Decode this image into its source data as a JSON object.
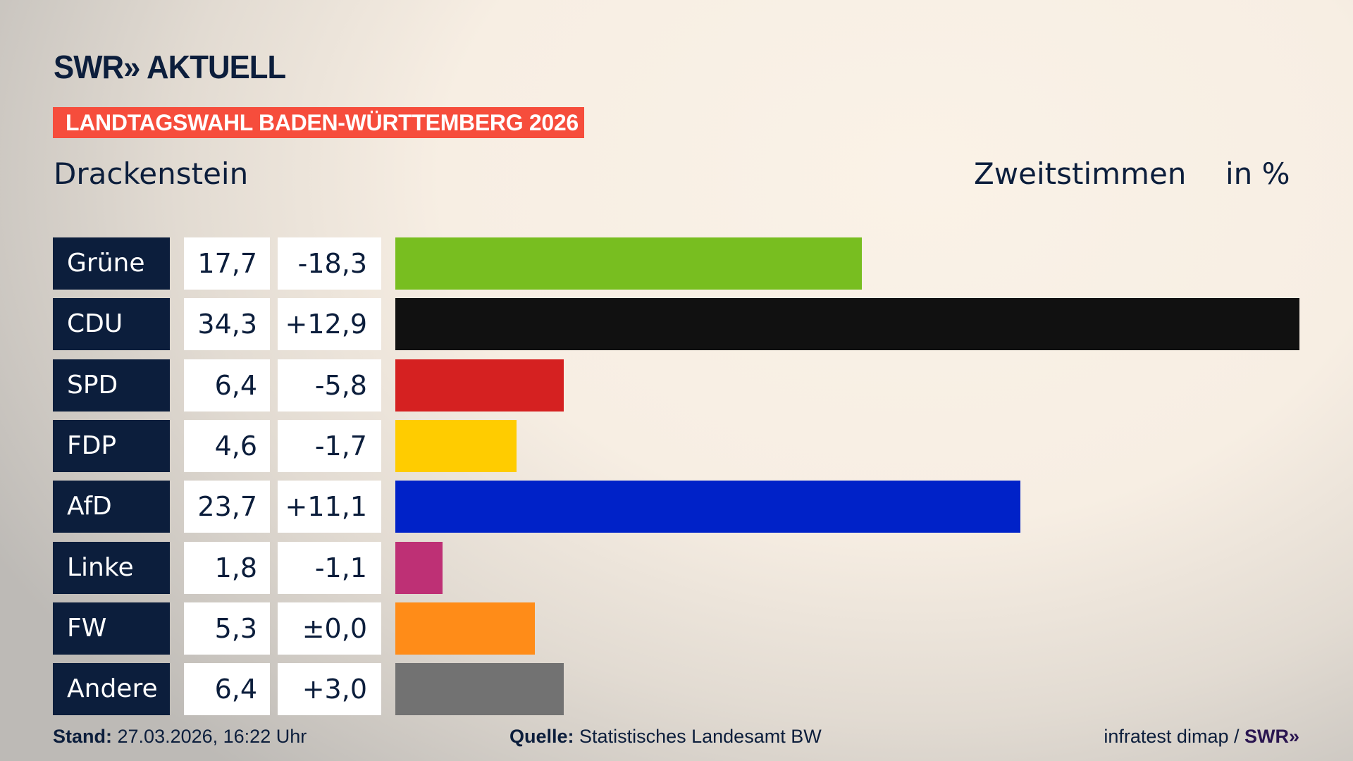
{
  "header": {
    "logo": "SWR» AKTUELL",
    "banner": "LANDTAGSWAHL BADEN-WÜRTTEMBERG 2026",
    "place": "Drackenstein",
    "metric": "Zweitstimmen",
    "unit": "in %"
  },
  "chart_data": {
    "type": "bar",
    "orientation": "horizontal",
    "xlim": [
      0,
      34.3
    ],
    "grid": false,
    "categories": [
      "Grüne",
      "CDU",
      "SPD",
      "FDP",
      "AfD",
      "Linke",
      "FW",
      "Andere"
    ],
    "values": [
      17.7,
      34.3,
      6.4,
      4.6,
      23.7,
      1.8,
      5.3,
      6.4
    ],
    "value_labels": [
      "17,7",
      "34,3",
      "6,4",
      "4,6",
      "23,7",
      "1,8",
      "5,3",
      "6,4"
    ],
    "diff_labels": [
      "-18,3",
      "+12,9",
      "-5,8",
      "-1,7",
      "+11,1",
      "-1,1",
      "±0,0",
      "+3,0"
    ],
    "colors": [
      "#78be20",
      "#111111",
      "#d52121",
      "#ffcc00",
      "#0022c8",
      "#be3075",
      "#ff8c18",
      "#727272"
    ]
  },
  "footer": {
    "stand_label": "Stand:",
    "stand_value": "27.03.2026, 16:22 Uhr",
    "source_label": "Quelle:",
    "source_value": "Statistisches Landesamt BW",
    "credit": "infratest dimap / ",
    "credit_logo": "SWR»"
  }
}
